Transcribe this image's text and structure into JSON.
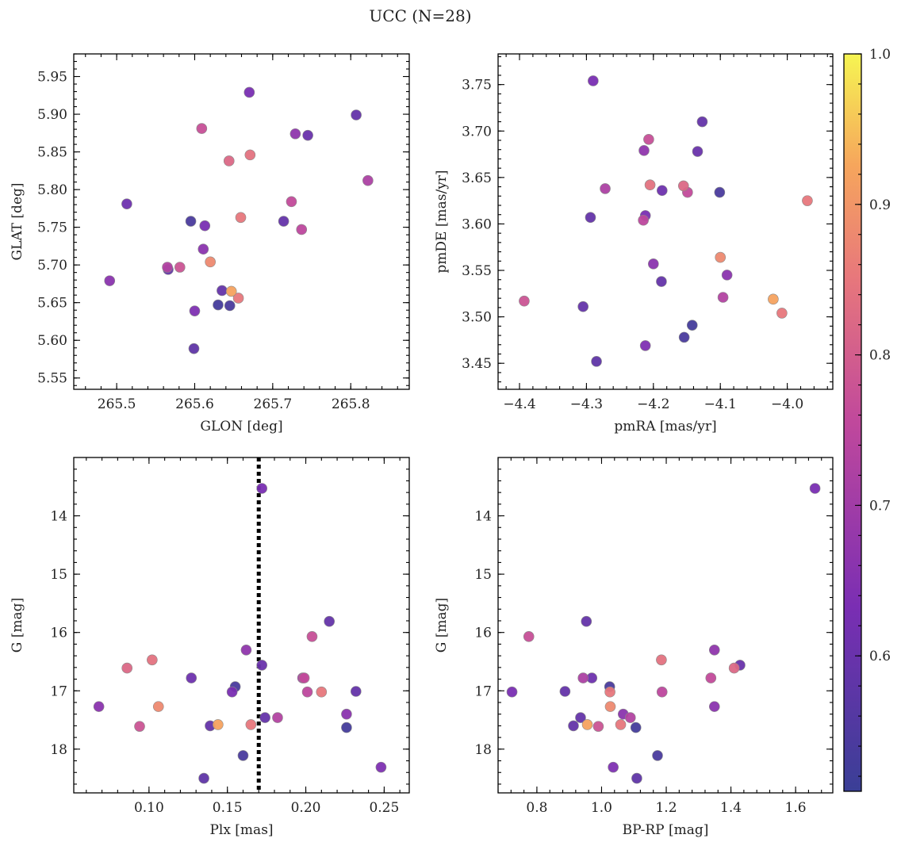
{
  "chart_data": {
    "title": "UCC (N=28)",
    "colorbar": {
      "colormap": "plasma",
      "range": [
        0.51,
        1.0
      ],
      "ticks": [
        0.6,
        0.7,
        0.8,
        0.9,
        1.0
      ],
      "tick_labels": [
        "0.6",
        "0.7",
        "0.8",
        "0.9",
        "1.0"
      ]
    },
    "membership_probability": [
      0.63,
      0.59,
      0.77,
      0.67,
      0.6,
      0.84,
      0.82,
      0.72,
      0.61,
      0.76,
      0.54,
      0.85,
      0.63,
      0.59,
      0.75,
      0.66,
      0.88,
      0.66,
      0.59,
      0.73,
      0.78,
      0.59,
      0.92,
      0.85,
      0.53,
      0.54,
      0.64,
      0.58
    ],
    "panels": [
      {
        "type": "scatter",
        "xlabel": "GLON [deg]",
        "ylabel": "GLAT [deg]",
        "xlim": [
          265.445,
          265.875
        ],
        "ylim": [
          5.535,
          5.98
        ],
        "xticks": [
          265.5,
          265.6,
          265.7,
          265.8
        ],
        "xtick_labels": [
          "265.5",
          "265.6",
          "265.7",
          "265.8"
        ],
        "yticks": [
          5.55,
          5.6,
          5.65,
          5.7,
          5.75,
          5.8,
          5.85,
          5.9,
          5.95
        ],
        "ytick_labels": [
          "5.55",
          "5.60",
          "5.65",
          "5.70",
          "5.75",
          "5.80",
          "5.85",
          "5.90",
          "5.95"
        ],
        "x": [
          265.67,
          265.807,
          265.609,
          265.729,
          265.745,
          265.671,
          265.644,
          265.822,
          265.513,
          265.724,
          265.595,
          265.659,
          265.613,
          265.714,
          265.737,
          265.611,
          265.62,
          265.491,
          265.566,
          265.565,
          265.581,
          265.635,
          265.647,
          265.656,
          265.63,
          265.645,
          265.6,
          265.599
        ],
        "y": [
          5.929,
          5.899,
          5.881,
          5.874,
          5.872,
          5.846,
          5.838,
          5.812,
          5.781,
          5.784,
          5.758,
          5.763,
          5.752,
          5.758,
          5.747,
          5.721,
          5.704,
          5.679,
          5.694,
          5.697,
          5.697,
          5.666,
          5.665,
          5.656,
          5.647,
          5.646,
          5.639,
          5.589
        ]
      },
      {
        "type": "scatter",
        "xlabel": "pmRA [mas/yr]",
        "ylabel": "pmDE [mas/yr]",
        "xlim": [
          -4.432,
          -3.932
        ],
        "ylim": [
          3.422,
          3.783
        ],
        "xticks": [
          -4.4,
          -4.3,
          -4.2,
          -4.1,
          -4.0
        ],
        "xtick_labels": [
          "−4.4",
          "−4.3",
          "−4.2",
          "−4.1",
          "−4.0"
        ],
        "yticks": [
          3.45,
          3.5,
          3.55,
          3.6,
          3.65,
          3.7,
          3.75
        ],
        "ytick_labels": [
          "3.45",
          "3.50",
          "3.55",
          "3.60",
          "3.65",
          "3.70",
          "3.75"
        ],
        "x": [
          -4.29,
          -4.127,
          -4.207,
          -4.214,
          -4.134,
          -4.205,
          -4.155,
          -4.272,
          -4.187,
          -4.149,
          -4.101,
          -3.97,
          -4.212,
          -4.294,
          -4.215,
          -4.2,
          -4.1,
          -4.09,
          -4.188,
          -4.096,
          -4.393,
          -4.305,
          -4.021,
          -4.008,
          -4.142,
          -4.154,
          -4.212,
          -4.285
        ],
        "y": [
          3.754,
          3.71,
          3.691,
          3.679,
          3.678,
          3.642,
          3.641,
          3.638,
          3.636,
          3.634,
          3.634,
          3.625,
          3.609,
          3.607,
          3.604,
          3.557,
          3.564,
          3.545,
          3.538,
          3.521,
          3.517,
          3.511,
          3.519,
          3.504,
          3.491,
          3.478,
          3.469,
          3.452
        ]
      },
      {
        "type": "scatter",
        "xlabel": "Plx [mas]",
        "ylabel": "G [mag]",
        "xlim": [
          0.052,
          0.266
        ],
        "ylim": [
          18.75,
          13.0
        ],
        "y_inverted": true,
        "xticks": [
          0.1,
          0.15,
          0.2,
          0.25
        ],
        "xtick_labels": [
          "0.10",
          "0.15",
          "0.20",
          "0.25"
        ],
        "yticks": [
          14,
          15,
          16,
          17,
          18
        ],
        "ytick_labels": [
          "14",
          "15",
          "16",
          "17",
          "18"
        ],
        "vline": {
          "x": 0.17,
          "style": "dotted",
          "color": "#000000"
        },
        "x": [
          0.172,
          0.215,
          0.204,
          0.162,
          0.172,
          0.102,
          0.086,
          0.198,
          0.127,
          0.199,
          0.155,
          0.21,
          0.153,
          0.232,
          0.201,
          0.068,
          0.106,
          0.226,
          0.174,
          0.182,
          0.094,
          0.139,
          0.144,
          0.165,
          0.226,
          0.16,
          0.248,
          0.135
        ],
        "y": [
          13.53,
          15.81,
          16.07,
          16.3,
          16.56,
          16.47,
          16.61,
          16.78,
          16.78,
          16.78,
          16.93,
          17.02,
          17.02,
          17.01,
          17.02,
          17.27,
          17.27,
          17.4,
          17.46,
          17.46,
          17.61,
          17.6,
          17.58,
          17.58,
          17.63,
          18.11,
          18.31,
          18.5
        ]
      },
      {
        "type": "scatter",
        "xlabel": "BP-RP [mag]",
        "ylabel": "G [mag]",
        "xlim": [
          0.68,
          1.715
        ],
        "ylim": [
          18.75,
          13.0
        ],
        "y_inverted": true,
        "xticks": [
          0.8,
          1.0,
          1.2,
          1.4,
          1.6
        ],
        "xtick_labels": [
          "0.8",
          "1.0",
          "1.2",
          "1.4",
          "1.6"
        ],
        "yticks": [
          14,
          15,
          16,
          17,
          18
        ],
        "ytick_labels": [
          "14",
          "15",
          "16",
          "17",
          "18"
        ],
        "x": [
          1.66,
          0.953,
          0.775,
          1.349,
          1.428,
          1.185,
          1.41,
          0.943,
          0.97,
          1.338,
          1.025,
          1.026,
          0.723,
          0.887,
          1.187,
          1.349,
          1.027,
          1.067,
          0.935,
          1.089,
          0.99,
          0.913,
          0.956,
          1.059,
          1.106,
          1.173,
          1.036,
          1.109
        ],
        "y": [
          13.53,
          15.81,
          16.07,
          16.3,
          16.56,
          16.47,
          16.61,
          16.78,
          16.78,
          16.78,
          16.93,
          17.02,
          17.02,
          17.01,
          17.02,
          17.27,
          17.27,
          17.4,
          17.46,
          17.46,
          17.61,
          17.6,
          17.58,
          17.58,
          17.63,
          18.11,
          18.31,
          18.5
        ]
      }
    ]
  }
}
